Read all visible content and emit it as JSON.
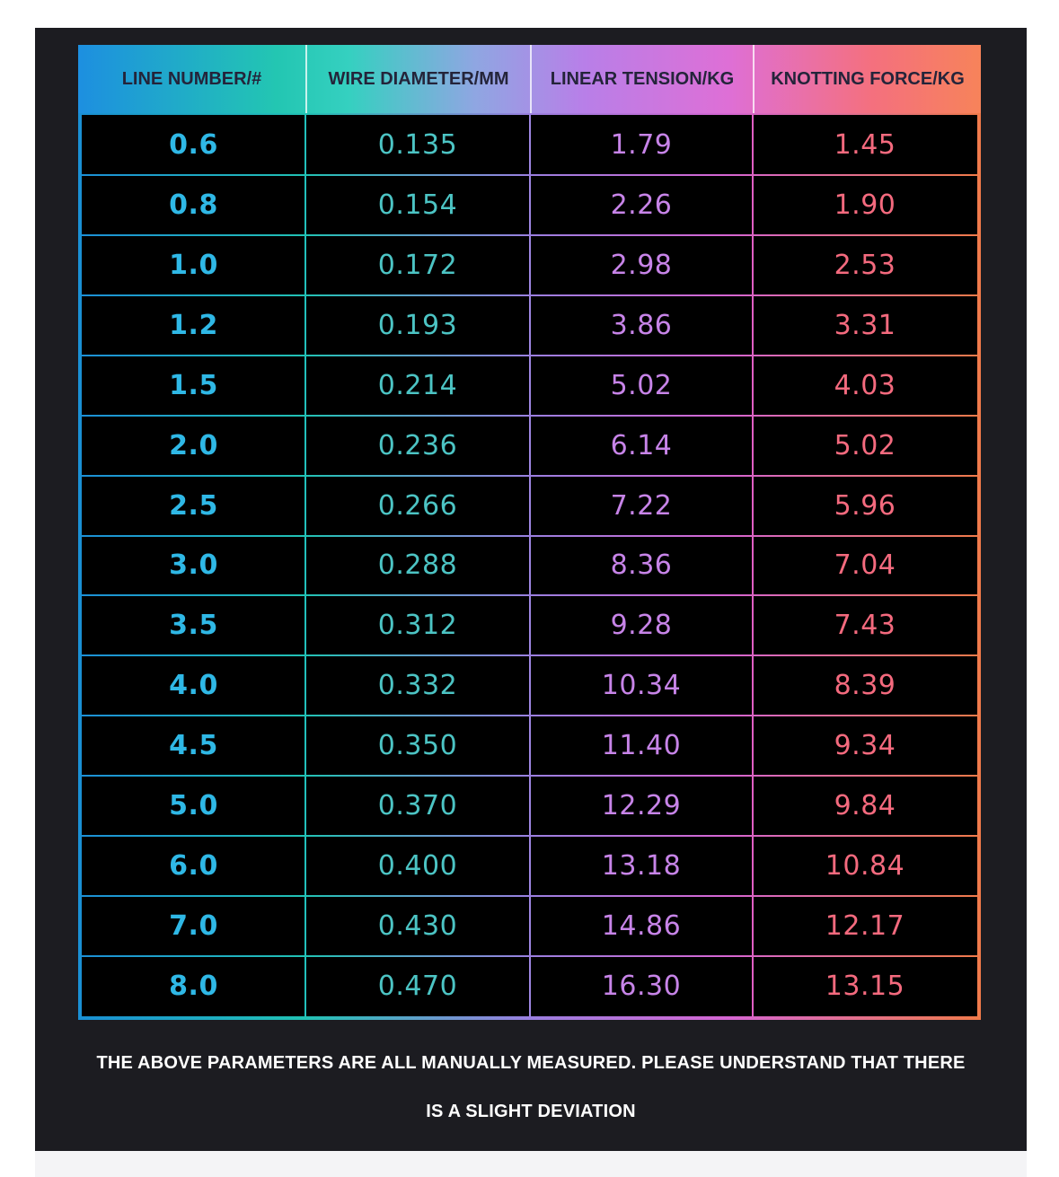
{
  "table": {
    "headers": [
      "LINE NUMBER/#",
      "WIRE DIAMETER/MM",
      "LINEAR TENSION/KG",
      "KNOTTING FORCE/KG"
    ],
    "rows": [
      [
        "0.6",
        "0.135",
        "1.79",
        "1.45"
      ],
      [
        "0.8",
        "0.154",
        "2.26",
        "1.90"
      ],
      [
        "1.0",
        "0.172",
        "2.98",
        "2.53"
      ],
      [
        "1.2",
        "0.193",
        "3.86",
        "3.31"
      ],
      [
        "1.5",
        "0.214",
        "5.02",
        "4.03"
      ],
      [
        "2.0",
        "0.236",
        "6.14",
        "5.02"
      ],
      [
        "2.5",
        "0.266",
        "7.22",
        "5.96"
      ],
      [
        "3.0",
        "0.288",
        "8.36",
        "7.04"
      ],
      [
        "3.5",
        "0.312",
        "9.28",
        "7.43"
      ],
      [
        "4.0",
        "0.332",
        "10.34",
        "8.39"
      ],
      [
        "4.5",
        "0.350",
        "11.40",
        "9.34"
      ],
      [
        "5.0",
        "0.370",
        "12.29",
        "9.84"
      ],
      [
        "6.0",
        "0.400",
        "13.18",
        "10.84"
      ],
      [
        "7.0",
        "0.430",
        "14.86",
        "12.17"
      ],
      [
        "8.0",
        "0.470",
        "16.30",
        "13.15"
      ]
    ]
  },
  "note": {
    "line1": "THE ABOVE PARAMETERS ARE ALL MANUALLY MEASURED. PLEASE UNDERSTAND THAT THERE",
    "line2": "IS A SLIGHT DEVIATION"
  },
  "colors": {
    "panel_background": "#1c1c21",
    "cell_background": "#000000",
    "column_text": [
      "#2fb8e6",
      "#4cc4c4",
      "#c784e8",
      "#f46a7e"
    ]
  }
}
